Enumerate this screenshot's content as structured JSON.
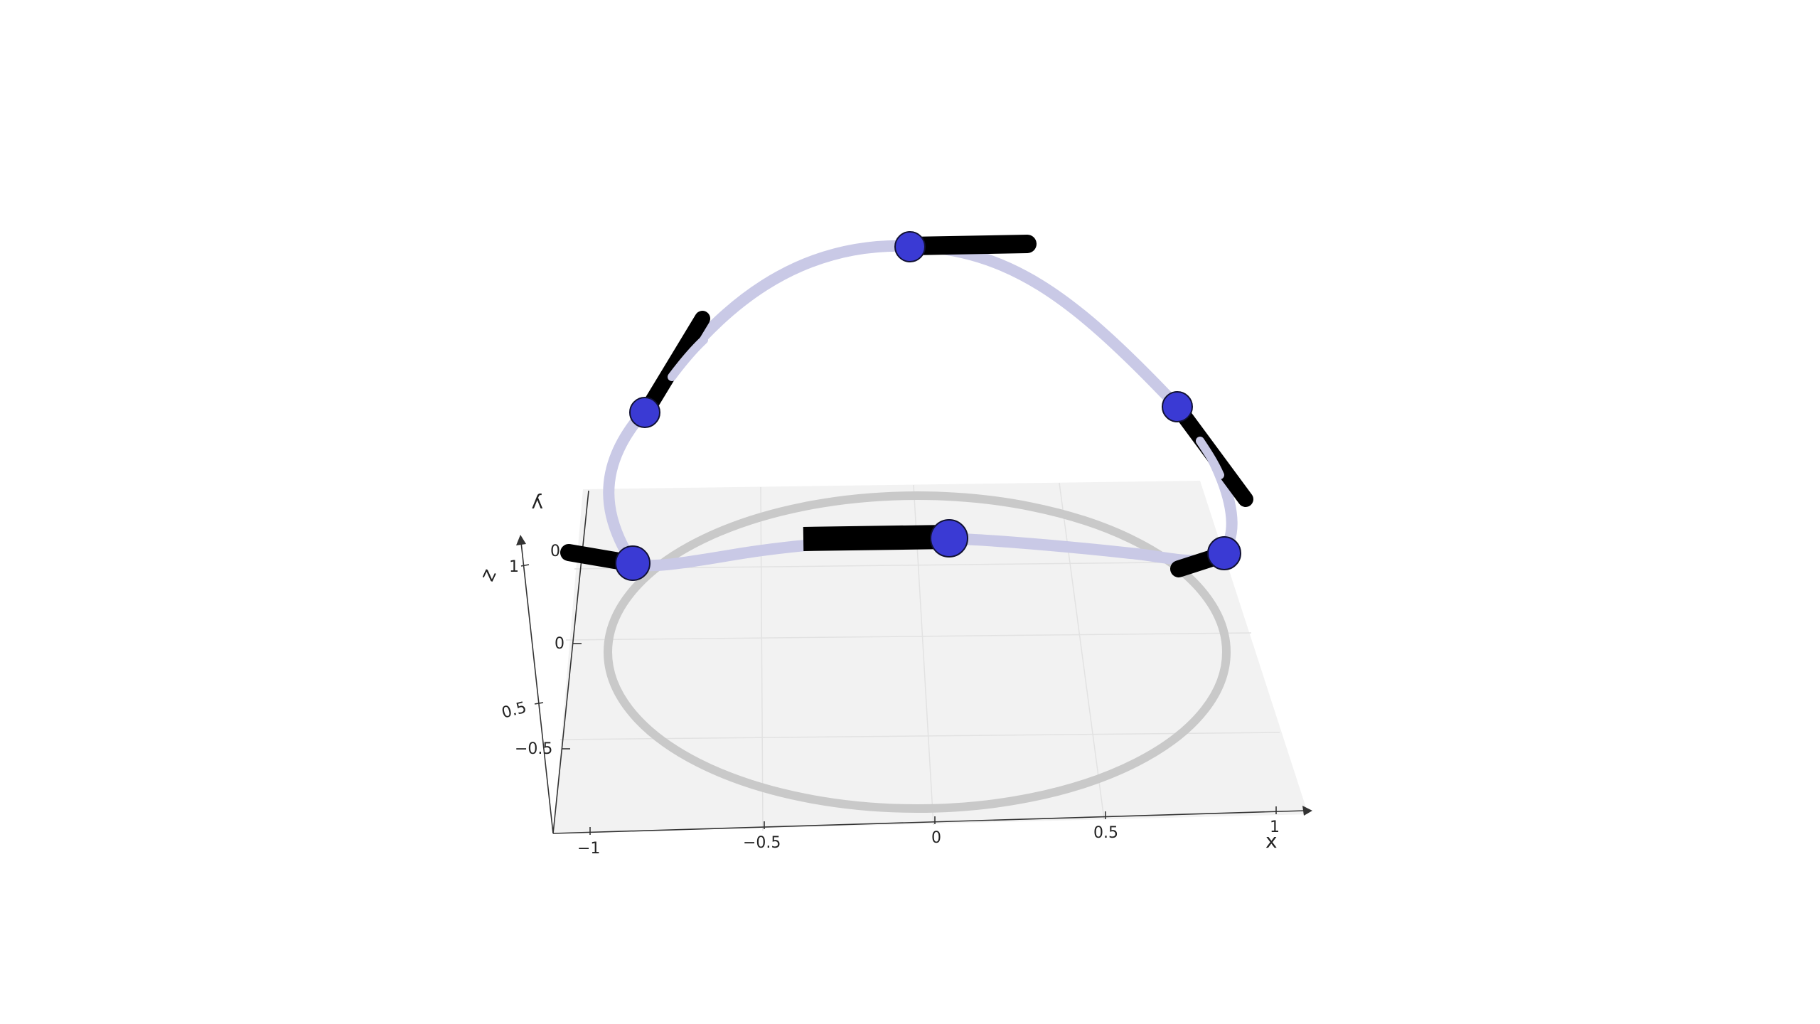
{
  "scene": {
    "title": "",
    "description_hidden": false
  },
  "axes": {
    "x": {
      "label": "x",
      "ticks": [
        "−1",
        "−0.5",
        "0",
        "0.5",
        "1"
      ]
    },
    "y": {
      "label": "y",
      "ticks": [
        "0"
      ]
    },
    "z": {
      "label": "z",
      "ticks": [
        "1",
        "0",
        "0.5",
        "−0.5"
      ]
    }
  },
  "colors": {
    "background": "#ffffff",
    "floor_plane": "#f2f2f2",
    "gridline": "#e2e2e2",
    "floor_circle": "#c9c9c9",
    "curve": "#c9c9e6",
    "marker_fill": "#3a3ad4",
    "marker_stroke": "#111133",
    "rod": "#000000",
    "axis_line": "#333333"
  },
  "elements": {
    "floor_circle": "reference-circle",
    "curve": "parametric-curve",
    "markers": [
      {
        "name": "point-left-low"
      },
      {
        "name": "point-left-mid"
      },
      {
        "name": "point-top"
      },
      {
        "name": "point-right-mid"
      },
      {
        "name": "point-right-low"
      },
      {
        "name": "point-center"
      }
    ]
  }
}
